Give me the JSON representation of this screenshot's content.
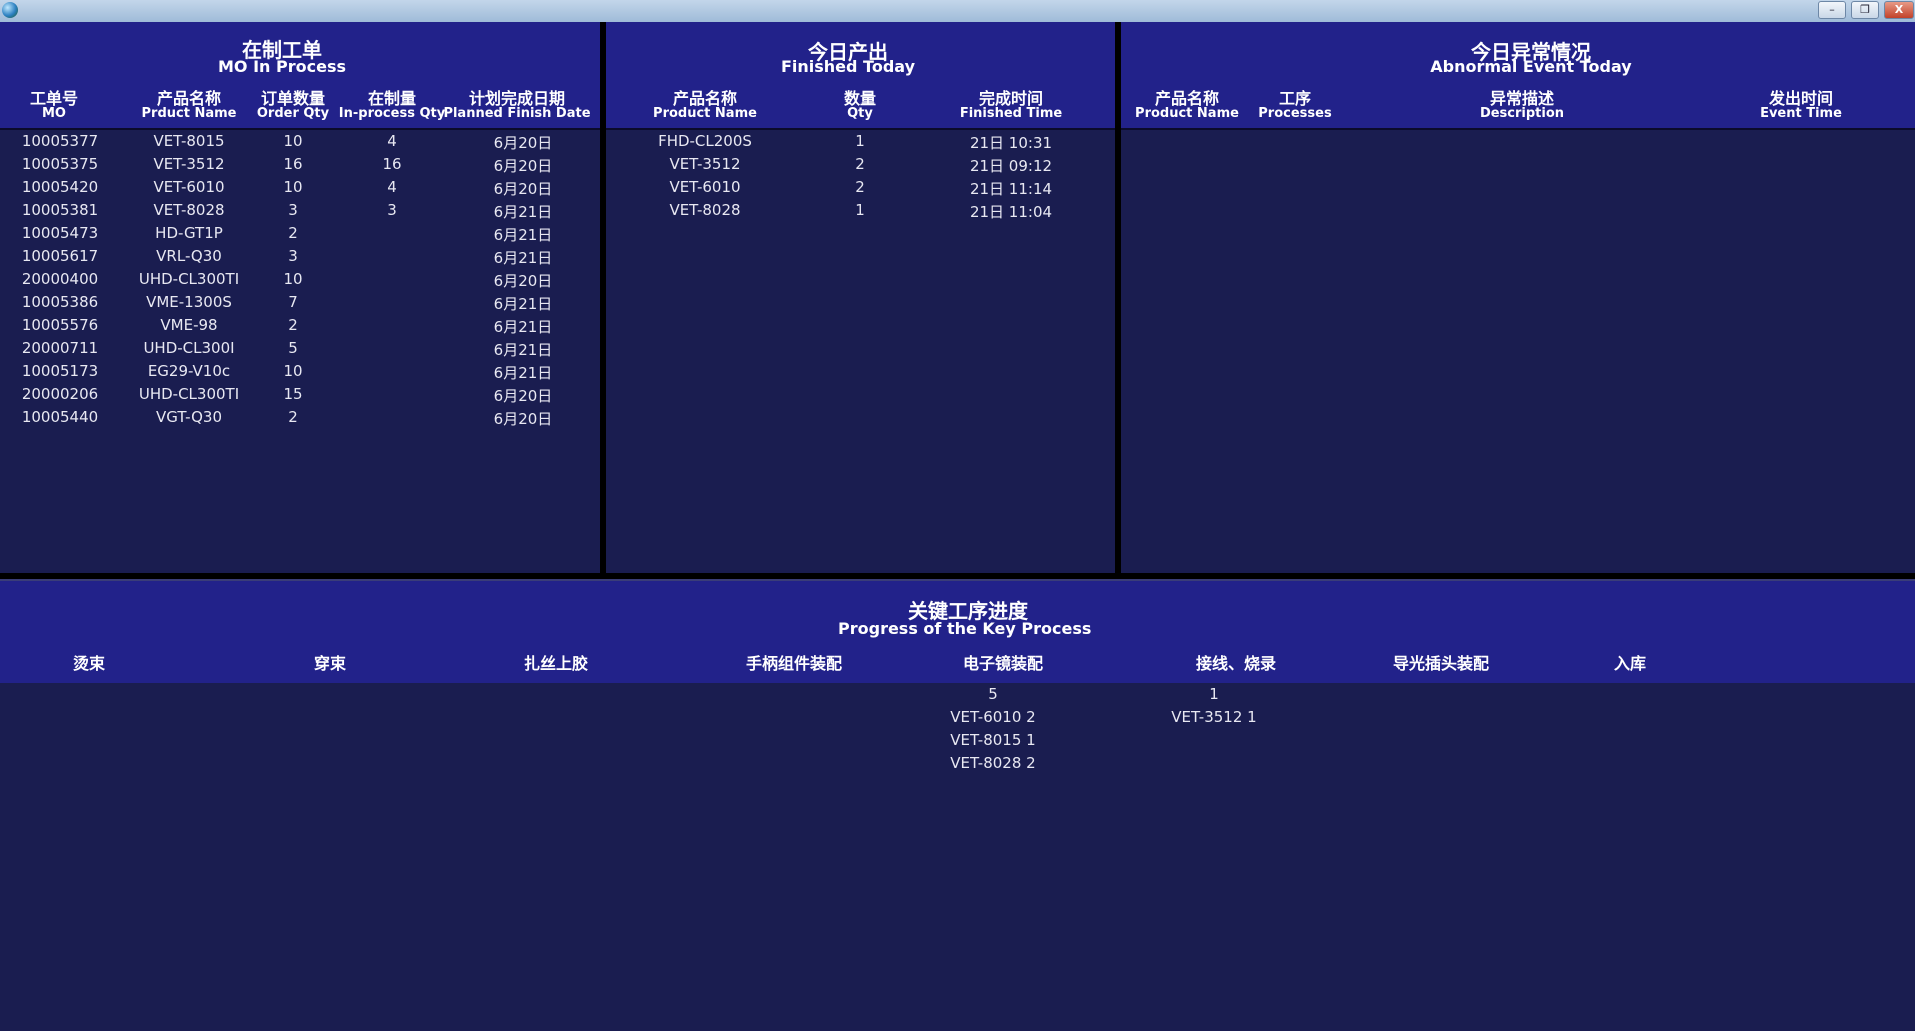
{
  "window": {
    "minimize": "–",
    "restore": "❐",
    "close": "X"
  },
  "mo_panel": {
    "title_cn": "在制工单",
    "title_en": "MO In Process",
    "columns": [
      {
        "cn": "工单号",
        "en": "MO"
      },
      {
        "cn": "产品名称",
        "en": "Prduct Name"
      },
      {
        "cn": "订单数量",
        "en": "Order Qty"
      },
      {
        "cn": "在制量",
        "en": "In-process Qty"
      },
      {
        "cn": "计划完成日期",
        "en": "Planned Finish Date"
      }
    ],
    "rows": [
      [
        "10005377",
        "VET-8015",
        "10",
        "4",
        "6月20日"
      ],
      [
        "10005375",
        "VET-3512",
        "16",
        "16",
        "6月20日"
      ],
      [
        "10005420",
        "VET-6010",
        "10",
        "4",
        "6月20日"
      ],
      [
        "10005381",
        "VET-8028",
        "3",
        "3",
        "6月21日"
      ],
      [
        "10005473",
        "HD-GT1P",
        "2",
        "",
        "6月21日"
      ],
      [
        "10005617",
        "VRL-Q30",
        "3",
        "",
        "6月21日"
      ],
      [
        "20000400",
        "UHD-CL300TI",
        "10",
        "",
        "6月20日"
      ],
      [
        "10005386",
        "VME-1300S",
        "7",
        "",
        "6月21日"
      ],
      [
        "10005576",
        "VME-98",
        "2",
        "",
        "6月21日"
      ],
      [
        "20000711",
        "UHD-CL300I",
        "5",
        "",
        "6月21日"
      ],
      [
        "10005173",
        "EG29-V10c",
        "10",
        "",
        "6月21日"
      ],
      [
        "20000206",
        "UHD-CL300TI",
        "15",
        "",
        "6月20日"
      ],
      [
        "10005440",
        "VGT-Q30",
        "2",
        "",
        "6月20日"
      ]
    ]
  },
  "finished_panel": {
    "title_cn": "今日产出",
    "title_en": "Finished Today",
    "columns": [
      {
        "cn": "产品名称",
        "en": "Product Name"
      },
      {
        "cn": "数量",
        "en": "Qty"
      },
      {
        "cn": "完成时间",
        "en": "Finished Time"
      }
    ],
    "rows": [
      [
        "FHD-CL200S",
        "1",
        "21日 10:31"
      ],
      [
        "VET-3512",
        "2",
        "21日 09:12"
      ],
      [
        "VET-6010",
        "2",
        "21日 11:14"
      ],
      [
        "VET-8028",
        "1",
        "21日 11:04"
      ]
    ]
  },
  "abnormal_panel": {
    "title_cn": "今日异常情况",
    "title_en": "Abnormal Event Today",
    "columns": [
      {
        "cn": "产品名称",
        "en": "Product Name"
      },
      {
        "cn": "工序",
        "en": "Processes"
      },
      {
        "cn": "异常描述",
        "en": "Description"
      },
      {
        "cn": "发出时间",
        "en": "Event Time"
      }
    ],
    "rows": []
  },
  "progress_panel": {
    "title_cn": "关键工序进度",
    "title_en": "Progress of the Key Process",
    "columns": [
      "烫束",
      "穿束",
      "扎丝上胶",
      "手柄组件装配",
      "电子镜装配",
      "接线、烧录",
      "导光插头装配",
      "入库"
    ],
    "cells": {
      "col4": [
        "5",
        "VET-6010 2",
        "VET-8015 1",
        "VET-8028 2"
      ],
      "col5": [
        "1",
        "VET-3512 1"
      ]
    }
  },
  "colors": {
    "header": "#22228a",
    "body": "#1a1d50",
    "divider": "#000000"
  }
}
